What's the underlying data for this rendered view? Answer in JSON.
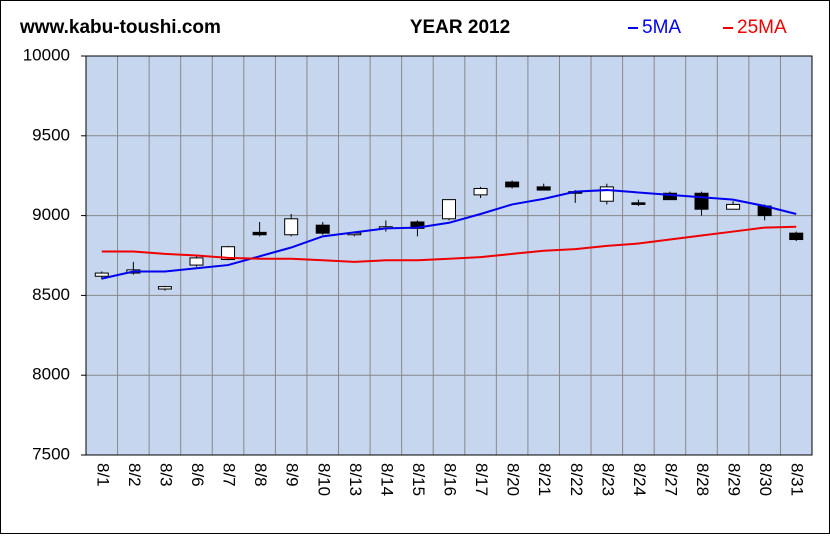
{
  "chart_data": {
    "type": "candlestick",
    "site": "www.kabu-toushi.com",
    "title": "YEAR 2012",
    "categories": [
      "8/1",
      "8/2",
      "8/3",
      "8/6",
      "8/7",
      "8/8",
      "8/9",
      "8/10",
      "8/13",
      "8/14",
      "8/15",
      "8/16",
      "8/17",
      "8/20",
      "8/21",
      "8/22",
      "8/23",
      "8/24",
      "8/27",
      "8/28",
      "8/29",
      "8/30",
      "8/31"
    ],
    "open": [
      8620,
      8640,
      8540,
      8690,
      8725,
      8895,
      8880,
      8940,
      8880,
      8920,
      8960,
      8980,
      9130,
      9210,
      9180,
      9150,
      9090,
      9080,
      9140,
      9140,
      9040,
      9060,
      8890
    ],
    "high": [
      8650,
      8710,
      8560,
      8750,
      8810,
      8960,
      9010,
      8960,
      8900,
      8970,
      8970,
      9100,
      9180,
      9220,
      9200,
      9160,
      9200,
      9100,
      9150,
      9150,
      9090,
      9070,
      8900
    ],
    "low": [
      8600,
      8630,
      8530,
      8680,
      8720,
      8870,
      8870,
      8880,
      8870,
      8900,
      8870,
      8970,
      9110,
      9170,
      9160,
      9080,
      9070,
      9060,
      9100,
      9000,
      9040,
      8970,
      8840
    ],
    "close": [
      8640,
      8660,
      8555,
      8735,
      8805,
      8880,
      8980,
      8890,
      8890,
      8930,
      8920,
      9100,
      9170,
      9180,
      9160,
      9140,
      9180,
      9070,
      9100,
      9040,
      9070,
      9000,
      8850
    ],
    "up_color": "#ffffff",
    "down_color": "#000000",
    "series": [
      {
        "name": "5MA",
        "color": "#0000ee",
        "values": [
          8605,
          8650,
          8650,
          8670,
          8690,
          8745,
          8800,
          8870,
          8895,
          8920,
          8925,
          8955,
          9010,
          9070,
          9105,
          9150,
          9160,
          9145,
          9130,
          9115,
          9100,
          9060,
          9010
        ]
      },
      {
        "name": "25MA",
        "color": "#ee0000",
        "values": [
          8775,
          8775,
          8760,
          8750,
          8735,
          8730,
          8730,
          8720,
          8710,
          8720,
          8720,
          8730,
          8740,
          8760,
          8780,
          8790,
          8810,
          8825,
          8850,
          8875,
          8900,
          8925,
          8930
        ]
      }
    ],
    "ylim": [
      7500,
      10000
    ],
    "yticks": [
      7500,
      8000,
      8500,
      9000,
      9500,
      10000
    ],
    "grid": true
  }
}
